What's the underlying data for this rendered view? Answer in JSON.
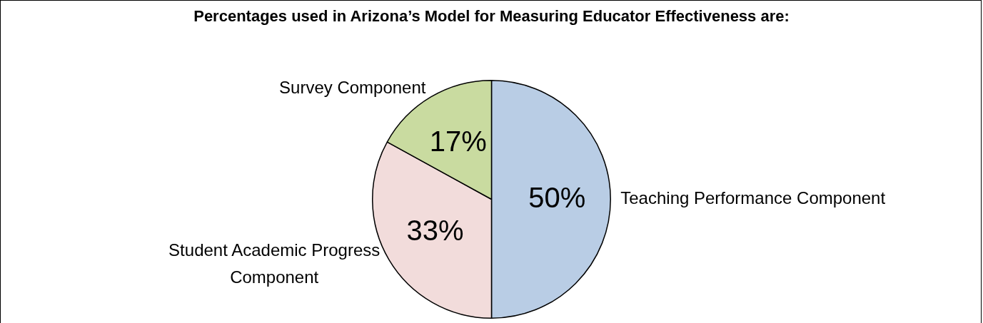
{
  "chart_data": {
    "type": "pie",
    "title": "Percentages used in Arizona’s Model for Measuring Educator Effectiveness are:",
    "categories": [
      "Teaching Performance Component",
      "Student Academic Progress Component",
      "Survey Component"
    ],
    "values": [
      50,
      33,
      17
    ],
    "colors": [
      "#b9cde5",
      "#f2dcdb",
      "#c9dba0"
    ],
    "value_labels": [
      "50%",
      "33%",
      "17%"
    ],
    "legend": false
  }
}
